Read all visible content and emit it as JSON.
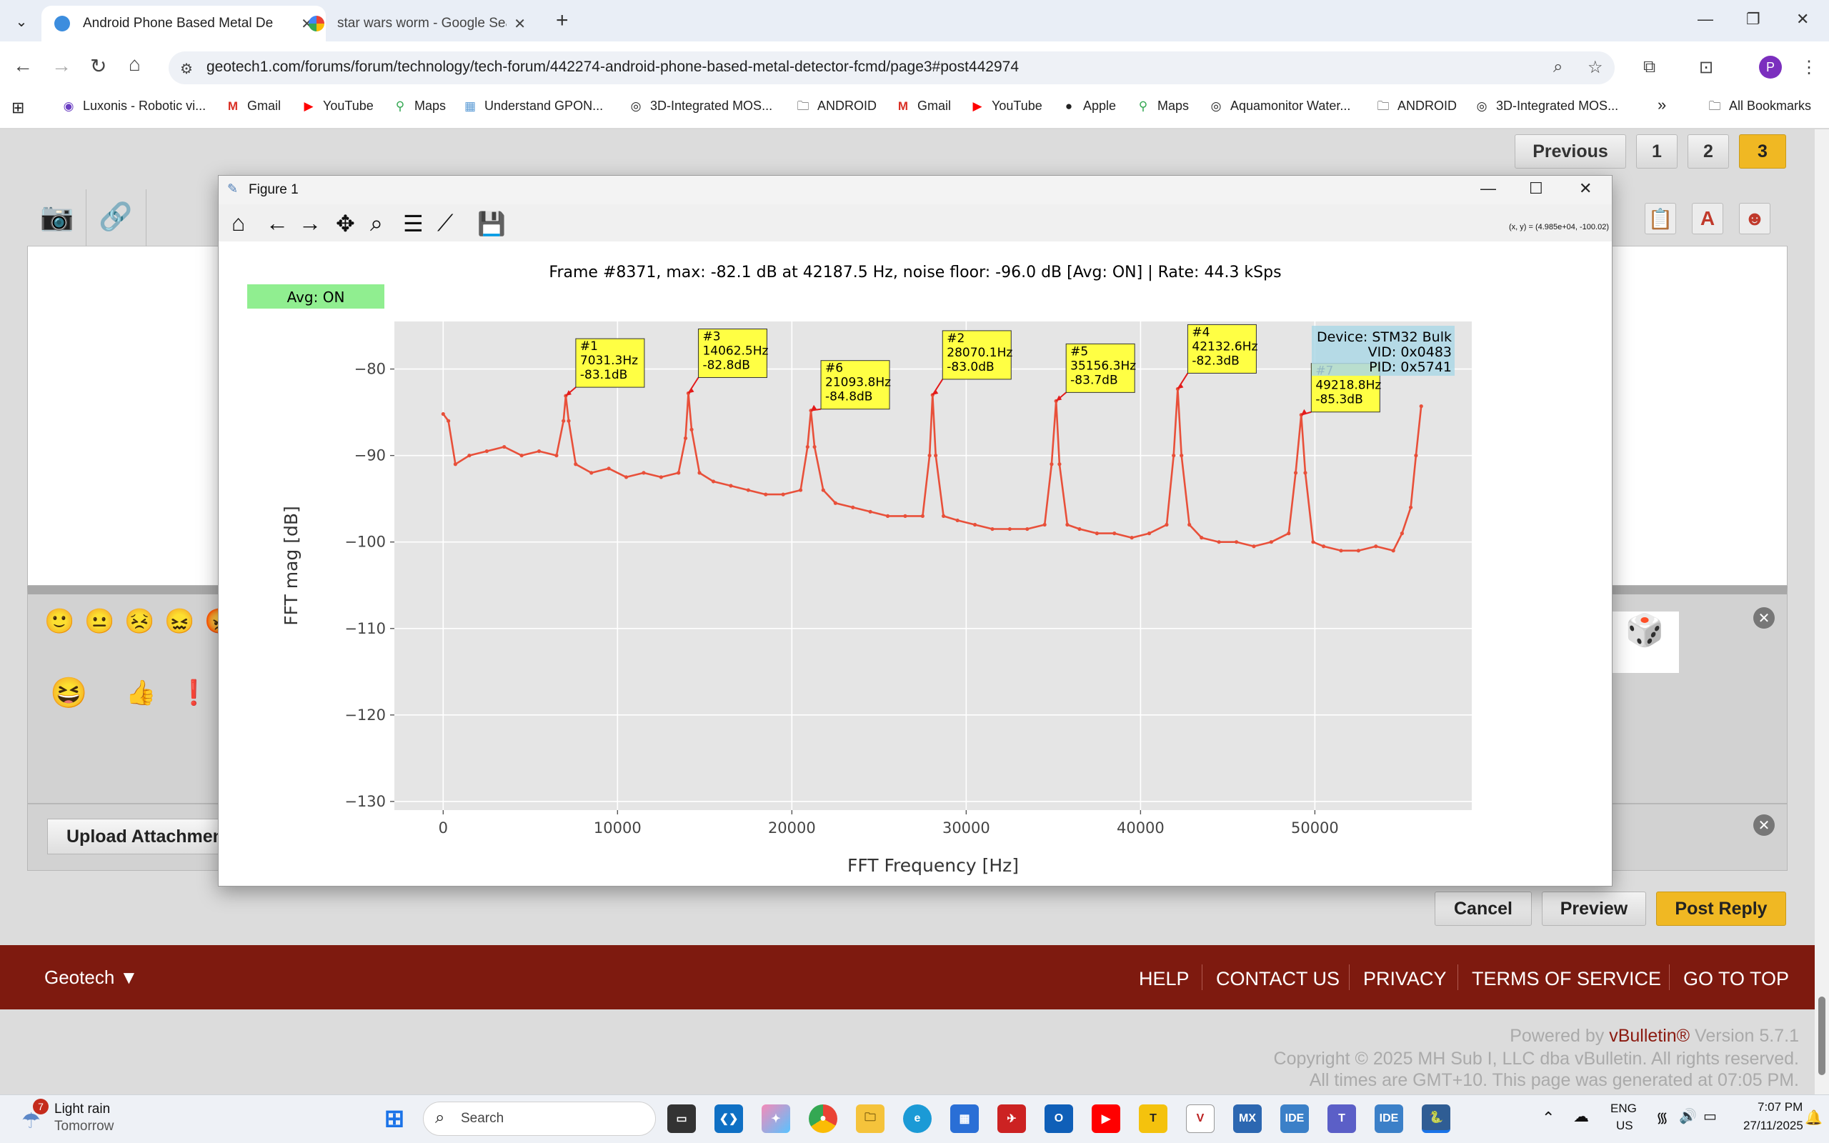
{
  "browser": {
    "tabs": [
      {
        "label": "Android Phone Based Metal De"
      },
      {
        "label": "star wars worm - Google Searc"
      }
    ],
    "url": "geotech1.com/forums/forum/technology/tech-forum/442274-android-phone-based-metal-detector-fcmd/page3#post442974",
    "profile_initial": "P",
    "bookmarks": [
      {
        "label": "Luxonis - Robotic vi..."
      },
      {
        "label": "Gmail"
      },
      {
        "label": "YouTube"
      },
      {
        "label": "Maps"
      },
      {
        "label": "Understand GPON..."
      },
      {
        "label": "3D-Integrated MOS..."
      },
      {
        "label": "ANDROID"
      },
      {
        "label": "Gmail"
      },
      {
        "label": "YouTube"
      },
      {
        "label": "Apple"
      },
      {
        "label": "Maps"
      },
      {
        "label": "Aquamonitor Water..."
      },
      {
        "label": "ANDROID"
      },
      {
        "label": "3D-Integrated MOS..."
      }
    ],
    "more_bookmarks": "»",
    "all_bookmarks": "All Bookmarks"
  },
  "page": {
    "pagination": {
      "previous": "Previous",
      "pages": [
        "1",
        "2",
        "3"
      ],
      "current": "3"
    },
    "upload_label": "Upload Attachmen",
    "actions": {
      "cancel": "Cancel",
      "preview": "Preview",
      "post": "Post Reply"
    },
    "footer": {
      "brand": "Geotech ▼",
      "links": [
        "HELP",
        "CONTACT US",
        "PRIVACY",
        "TERMS OF SERVICE",
        "GO TO TOP"
      ],
      "powered_prefix": "Powered by ",
      "powered_brand": "vBulletin®",
      "powered_suffix": " Version 5.7.1",
      "copyright": "Copyright © 2025 MH Sub I, LLC dba vBulletin. All rights reserved.",
      "times": "All times are GMT+10. This page was generated at 07:05 PM."
    }
  },
  "figure": {
    "window_title": "Figure 1",
    "coord_readout": "(x, y) = (4.985e+04, -100.02)",
    "status_box": "Avg: ON",
    "colors": {
      "line": "#e8503a",
      "annotation_bg": "#ffff44",
      "device_bg": "#add8e6",
      "avg_bg": "#90ee90",
      "axes_bg": "#e5e5e5"
    }
  },
  "chart_data": {
    "type": "line",
    "title": "Frame #8371, max: -82.1 dB at 42187.5 Hz, noise floor: -96.0 dB [Avg: ON] | Rate: 44.3 kSps",
    "xlabel": "FFT Frequency [Hz]",
    "ylabel": "FFT mag [dB]",
    "xlim": [
      -2800,
      59000
    ],
    "ylim": [
      -131,
      -74.5
    ],
    "xticks": [
      0,
      10000,
      20000,
      30000,
      40000,
      50000
    ],
    "xtick_labels": [
      "0",
      "10000",
      "20000",
      "30000",
      "40000",
      "50000"
    ],
    "yticks": [
      -80,
      -90,
      -100,
      -110,
      -120,
      -130
    ],
    "ytick_labels": [
      "−80",
      "−90",
      "−100",
      "−110",
      "−120",
      "−130"
    ],
    "grid": true,
    "series": [
      {
        "x": [
          0,
          300,
          700,
          1500,
          2500,
          3500,
          4500,
          5500,
          6500,
          6900,
          7031,
          7200,
          7600,
          8500,
          9500,
          10500,
          11500,
          12500,
          13500,
          13900,
          14062,
          14250,
          14700,
          15500,
          16500,
          17500,
          18500,
          19500,
          20500,
          20900,
          21094,
          21300,
          21800,
          22500,
          23500,
          24500,
          25500,
          26500,
          27500,
          27900,
          28070,
          28250,
          28700,
          29500,
          30500,
          31500,
          32500,
          33500,
          34500,
          34900,
          35156,
          35350,
          35800,
          36500,
          37500,
          38500,
          39500,
          40500,
          41500,
          41900,
          42133,
          42350,
          42800,
          43500,
          44500,
          45500,
          46500,
          47500,
          48500,
          48900,
          49219,
          49450,
          49900,
          50500,
          51500,
          52500,
          53500,
          54500,
          55000,
          55500,
          55800,
          56100
        ],
        "y": [
          -85.2,
          -86,
          -91,
          -90,
          -89.5,
          -89,
          -90,
          -89.5,
          -90,
          -86,
          -83.1,
          -86,
          -91,
          -92,
          -91.5,
          -92.5,
          -92,
          -92.5,
          -92,
          -88,
          -82.8,
          -87,
          -92,
          -93,
          -93.5,
          -94,
          -94.5,
          -94.5,
          -94,
          -89,
          -84.8,
          -89,
          -94,
          -95.5,
          -96,
          -96.5,
          -97,
          -97,
          -97,
          -90,
          -83.0,
          -90,
          -97,
          -97.5,
          -98,
          -98.5,
          -98.5,
          -98.5,
          -98,
          -91,
          -83.7,
          -91,
          -98,
          -98.5,
          -99,
          -99,
          -99.5,
          -99,
          -98,
          -90,
          -82.3,
          -90,
          -98,
          -99.5,
          -100,
          -100,
          -100.5,
          -100,
          -99,
          -92,
          -85.3,
          -92,
          -100,
          -100.5,
          -101,
          -101,
          -100.5,
          -101,
          -99,
          -96,
          -90,
          -84.3
        ]
      }
    ],
    "annotations": [
      {
        "id": "#1",
        "freq": "7031.3Hz",
        "mag": "-83.1dB",
        "x": 7031.3,
        "y": -83.1
      },
      {
        "id": "#3",
        "freq": "14062.5Hz",
        "mag": "-82.8dB",
        "x": 14062.5,
        "y": -82.8
      },
      {
        "id": "#6",
        "freq": "21093.8Hz",
        "mag": "-84.8dB",
        "x": 21093.8,
        "y": -84.8
      },
      {
        "id": "#2",
        "freq": "28070.1Hz",
        "mag": "-83.0dB",
        "x": 28070.1,
        "y": -83.0
      },
      {
        "id": "#5",
        "freq": "35156.3Hz",
        "mag": "-83.7dB",
        "x": 35156.3,
        "y": -83.7
      },
      {
        "id": "#4",
        "freq": "42132.6Hz",
        "mag": "-82.3dB",
        "x": 42132.6,
        "y": -82.3
      },
      {
        "id": "#7",
        "freq": "49218.8Hz",
        "mag": "-85.3dB",
        "x": 49218.8,
        "y": -85.3
      }
    ],
    "device_box": [
      "Device: STM32 Bulk",
      "VID: 0x0483",
      "PID: 0x5741"
    ]
  },
  "taskbar": {
    "weather_badge": "7",
    "weather_title": "Light rain",
    "weather_sub": "Tomorrow",
    "search_placeholder": "Search",
    "lang": "ENG",
    "region": "US",
    "time": "7:07 PM",
    "date": "27/11/2025",
    "apps": [
      "MX",
      "IDE",
      "IDE"
    ]
  }
}
